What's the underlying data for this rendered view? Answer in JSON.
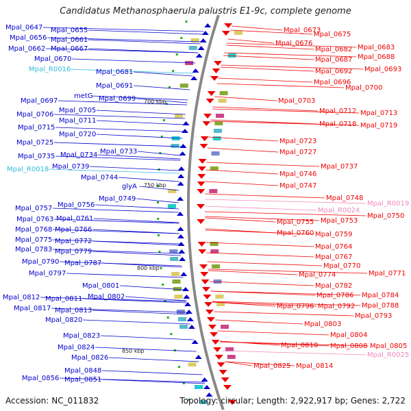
{
  "title": "Candidatus Methanosphaerula palustris E1-9c, complete genome",
  "footer": {
    "accession": "Accession: NC_011832",
    "summary": "Topology: circular; Length: 2,922,917 bp; Genes: 2,722"
  },
  "colors": {
    "plus_strand": "#0000cc",
    "minus_strand": "#ee0000",
    "rna_plus": "#33bbdd",
    "rna_minus": "#ee88bb",
    "ruler": "#888888",
    "tick": "#22aa22"
  },
  "ruler_labels": [
    {
      "id": "r700",
      "text": "700 kbp"
    },
    {
      "id": "r750",
      "text": "750 kbp"
    },
    {
      "id": "r800",
      "text": "800 kbp"
    },
    {
      "id": "r850",
      "text": "850 kbp"
    }
  ],
  "left_labels": [
    {
      "text": "Mpal_0647",
      "type": "gene"
    },
    {
      "text": "Mpal_0655",
      "type": "gene"
    },
    {
      "text": "Mpal_0656",
      "type": "gene"
    },
    {
      "text": "Mpal_0661",
      "type": "gene"
    },
    {
      "text": "Mpal_0662",
      "type": "gene"
    },
    {
      "text": "Mpal_0667",
      "type": "gene"
    },
    {
      "text": "Mpal_0670",
      "type": "gene"
    },
    {
      "text": "Mpal_R0016",
      "type": "rna"
    },
    {
      "text": "Mpal_0681",
      "type": "gene"
    },
    {
      "text": "Mpal_0691",
      "type": "gene"
    },
    {
      "text": "metG",
      "type": "gene"
    },
    {
      "text": "Mpal_0697",
      "type": "gene"
    },
    {
      "text": "Mpal_0699",
      "type": "gene"
    },
    {
      "text": "Mpal_0705",
      "type": "gene"
    },
    {
      "text": "Mpal_0706",
      "type": "gene"
    },
    {
      "text": "Mpal_0711",
      "type": "gene"
    },
    {
      "text": "Mpal_0715",
      "type": "gene"
    },
    {
      "text": "Mpal_0720",
      "type": "gene"
    },
    {
      "text": "Mpal_0725",
      "type": "gene"
    },
    {
      "text": "Mpal_0733",
      "type": "gene"
    },
    {
      "text": "Mpal_0735",
      "type": "gene"
    },
    {
      "text": "Mpal_0734",
      "type": "gene"
    },
    {
      "text": "Mpal_R0018",
      "type": "rna"
    },
    {
      "text": "Mpal_0739",
      "type": "gene"
    },
    {
      "text": "Mpal_0744",
      "type": "gene"
    },
    {
      "text": "glyA",
      "type": "gene"
    },
    {
      "text": "Mpal_0749",
      "type": "gene"
    },
    {
      "text": "Mpal_0757",
      "type": "gene"
    },
    {
      "text": "Mpal_0756",
      "type": "gene"
    },
    {
      "text": "Mpal_0763",
      "type": "gene"
    },
    {
      "text": "Mpal_0761",
      "type": "gene"
    },
    {
      "text": "Mpal_0768",
      "type": "gene"
    },
    {
      "text": "Mpal_0766",
      "type": "gene"
    },
    {
      "text": "Mpal_0775",
      "type": "gene"
    },
    {
      "text": "Mpal_0772",
      "type": "gene"
    },
    {
      "text": "Mpal_0783",
      "type": "gene"
    },
    {
      "text": "Mpal_0779",
      "type": "gene"
    },
    {
      "text": "Mpal_0790",
      "type": "gene"
    },
    {
      "text": "Mpal_0787",
      "type": "gene"
    },
    {
      "text": "Mpal_0797",
      "type": "gene"
    },
    {
      "text": "Mpal_0801",
      "type": "gene"
    },
    {
      "text": "Mpal_0802",
      "type": "gene"
    },
    {
      "text": "Mpal_0812",
      "type": "gene"
    },
    {
      "text": "Mpal_0811",
      "type": "gene"
    },
    {
      "text": "Mpal_0817",
      "type": "gene"
    },
    {
      "text": "Mpal_0813",
      "type": "gene"
    },
    {
      "text": "Mpal_0820",
      "type": "gene"
    },
    {
      "text": "Mpal_0823",
      "type": "gene"
    },
    {
      "text": "Mpal_0824",
      "type": "gene"
    },
    {
      "text": "Mpal_0826",
      "type": "gene"
    },
    {
      "text": "Mpal_0848",
      "type": "gene"
    },
    {
      "text": "Mpal_0856",
      "type": "gene"
    },
    {
      "text": "Mpal_0851",
      "type": "gene"
    }
  ],
  "right_labels": [
    {
      "text": "Mpal_0673",
      "type": "gene"
    },
    {
      "text": "Mpal_0675",
      "type": "gene"
    },
    {
      "text": "Mpal_0676",
      "type": "gene"
    },
    {
      "text": "Mpal_0683",
      "type": "gene"
    },
    {
      "text": "Mpal_0682",
      "type": "gene"
    },
    {
      "text": "Mpal_0688",
      "type": "gene"
    },
    {
      "text": "Mpal_0687",
      "type": "gene"
    },
    {
      "text": "Mpal_0693",
      "type": "gene"
    },
    {
      "text": "Mpal_0692",
      "type": "gene"
    },
    {
      "text": "Mpal_0696",
      "type": "gene"
    },
    {
      "text": "Mpal_0700",
      "type": "gene"
    },
    {
      "text": "Mpal_0703",
      "type": "gene"
    },
    {
      "text": "Mpal_0712",
      "type": "gene"
    },
    {
      "text": "Mpal_0713",
      "type": "gene"
    },
    {
      "text": "Mpal_0718",
      "type": "gene"
    },
    {
      "text": "Mpal_0719",
      "type": "gene"
    },
    {
      "text": "Mpal_0723",
      "type": "gene"
    },
    {
      "text": "Mpal_0727",
      "type": "gene"
    },
    {
      "text": "Mpal_0737",
      "type": "gene"
    },
    {
      "text": "Mpal_0746",
      "type": "gene"
    },
    {
      "text": "Mpal_0747",
      "type": "gene"
    },
    {
      "text": "Mpal_0748",
      "type": "gene"
    },
    {
      "text": "Mpal_R0019",
      "type": "rna"
    },
    {
      "text": "Mpal_R0024",
      "type": "rna"
    },
    {
      "text": "Mpal_0750",
      "type": "gene"
    },
    {
      "text": "Mpal_0755",
      "type": "gene"
    },
    {
      "text": "Mpal_0753",
      "type": "gene"
    },
    {
      "text": "Mpal_0760",
      "type": "gene"
    },
    {
      "text": "Mpal_0759",
      "type": "gene"
    },
    {
      "text": "Mpal_0764",
      "type": "gene"
    },
    {
      "text": "Mpal_0767",
      "type": "gene"
    },
    {
      "text": "Mpal_0770",
      "type": "gene"
    },
    {
      "text": "Mpal_0771",
      "type": "gene"
    },
    {
      "text": "Mpal_0774",
      "type": "gene"
    },
    {
      "text": "Mpal_0782",
      "type": "gene"
    },
    {
      "text": "Mpal_0784",
      "type": "gene"
    },
    {
      "text": "Mpal_0786",
      "type": "gene"
    },
    {
      "text": "Mpal_0788",
      "type": "gene"
    },
    {
      "text": "Mpal_0796",
      "type": "gene"
    },
    {
      "text": "Mpal_0792",
      "type": "gene"
    },
    {
      "text": "Mpal_0793",
      "type": "gene"
    },
    {
      "text": "Mpal_0803",
      "type": "gene"
    },
    {
      "text": "Mpal_0804",
      "type": "gene"
    },
    {
      "text": "Mpal_0808",
      "type": "gene"
    },
    {
      "text": "Mpal_0805",
      "type": "gene"
    },
    {
      "text": "Mpal_0810",
      "type": "gene"
    },
    {
      "text": "Mpal_R0025",
      "type": "rna"
    },
    {
      "text": "Mpal_0825",
      "type": "gene"
    },
    {
      "text": "Mpal_0814",
      "type": "gene"
    }
  ]
}
